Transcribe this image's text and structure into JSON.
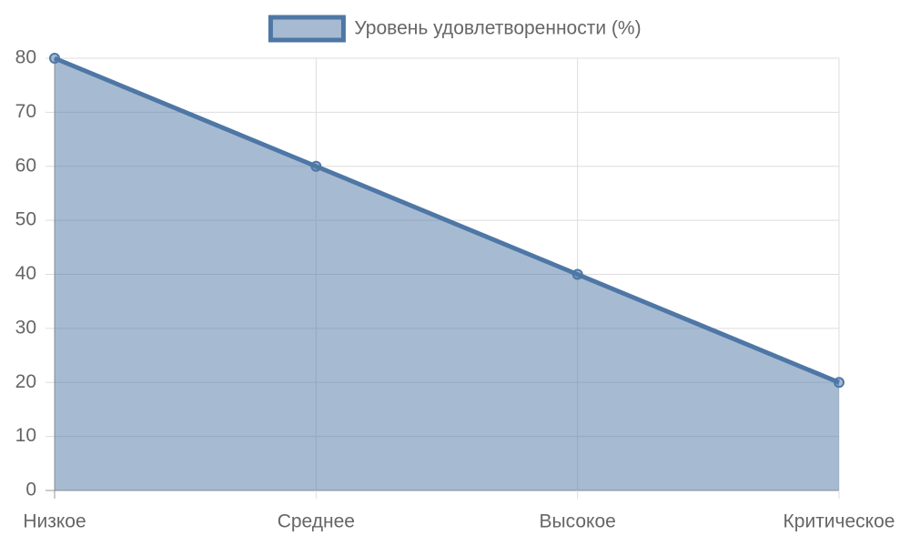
{
  "chart_data": {
    "type": "line",
    "categories": [
      "Низкое",
      "Среднее",
      "Высокое",
      "Критическое"
    ],
    "series": [
      {
        "name": "Уровень удовлетворенности (%)",
        "color": "#4e77a5",
        "values": [
          80,
          60,
          40,
          20
        ]
      }
    ],
    "fill": true,
    "ylim": [
      0,
      80
    ],
    "yticks": [
      0,
      10,
      20,
      30,
      40,
      50,
      60,
      70,
      80
    ],
    "grid": true,
    "legend": "top"
  }
}
